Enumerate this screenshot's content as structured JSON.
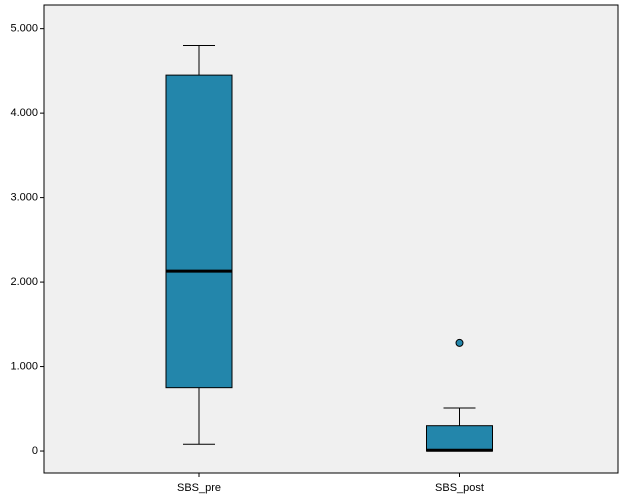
{
  "chart_data": {
    "type": "box",
    "categories": [
      "SBS_pre",
      "SBS_post"
    ],
    "boxes": [
      {
        "min": 0.08,
        "q1": 0.75,
        "median": 2.13,
        "q3": 4.45,
        "max": 4.8,
        "outliers": []
      },
      {
        "min": 0,
        "q1": 0,
        "median": 0.01,
        "q3": 0.3,
        "max": 0.51,
        "outliers": [
          1.28
        ]
      }
    ],
    "color": "#2386ab",
    "ylim": [
      -0.26,
      5.28
    ],
    "yticks": [
      0,
      {
        "value": 1,
        "label": "1.000"
      },
      {
        "value": 2,
        "label": "2.000"
      },
      {
        "value": 3,
        "label": "3.000"
      },
      {
        "value": 4,
        "label": "4.000"
      },
      {
        "value": 5,
        "label": "5.000"
      }
    ]
  }
}
